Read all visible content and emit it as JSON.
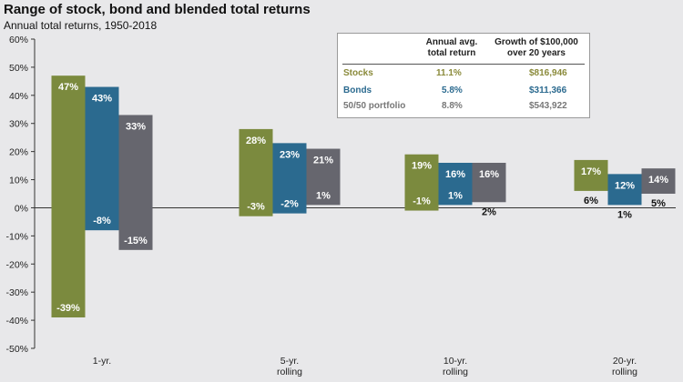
{
  "title": "Range of stock, bond and blended total returns",
  "subtitle": "Annual total returns, 1950-2018",
  "colors": {
    "stocks": "#7b8a3e",
    "bonds": "#2b6a8f",
    "blend": "#66666e",
    "stocks_text": "#8a8a3a",
    "bonds_text": "#2b6a8f",
    "blend_text": "#777777"
  },
  "legend_table": {
    "headers": [
      "Annual avg.\ntotal return",
      "Growth of $100,000\nover 20 years"
    ],
    "rows": [
      {
        "label": "Stocks",
        "avg": "11.1%",
        "growth": "$816,946"
      },
      {
        "label": "Bonds",
        "avg": "5.8%",
        "growth": "$311,366"
      },
      {
        "label": "50/50 portfolio",
        "avg": "8.8%",
        "growth": "$543,922"
      }
    ]
  },
  "chart_data": {
    "type": "bar",
    "subtype": "floating-range",
    "categories": [
      "1-yr.",
      "5-yr.\nrolling",
      "10-yr.\nrolling",
      "20-yr.\nrolling"
    ],
    "series": [
      {
        "name": "Stocks",
        "high": [
          47,
          28,
          19,
          17
        ],
        "low": [
          -39,
          -3,
          -1,
          6
        ]
      },
      {
        "name": "Bonds",
        "high": [
          43,
          23,
          16,
          12
        ],
        "low": [
          -8,
          -2,
          1,
          1
        ]
      },
      {
        "name": "50/50 portfolio",
        "high": [
          33,
          21,
          16,
          14
        ],
        "low": [
          -15,
          1,
          2,
          5
        ]
      }
    ],
    "ylim": [
      -50,
      60
    ],
    "yticks": [
      "60%",
      "50%",
      "40%",
      "30%",
      "20%",
      "10%",
      "0%",
      "-10%",
      "-20%",
      "-30%",
      "-40%",
      "-50%"
    ],
    "grid": false
  }
}
